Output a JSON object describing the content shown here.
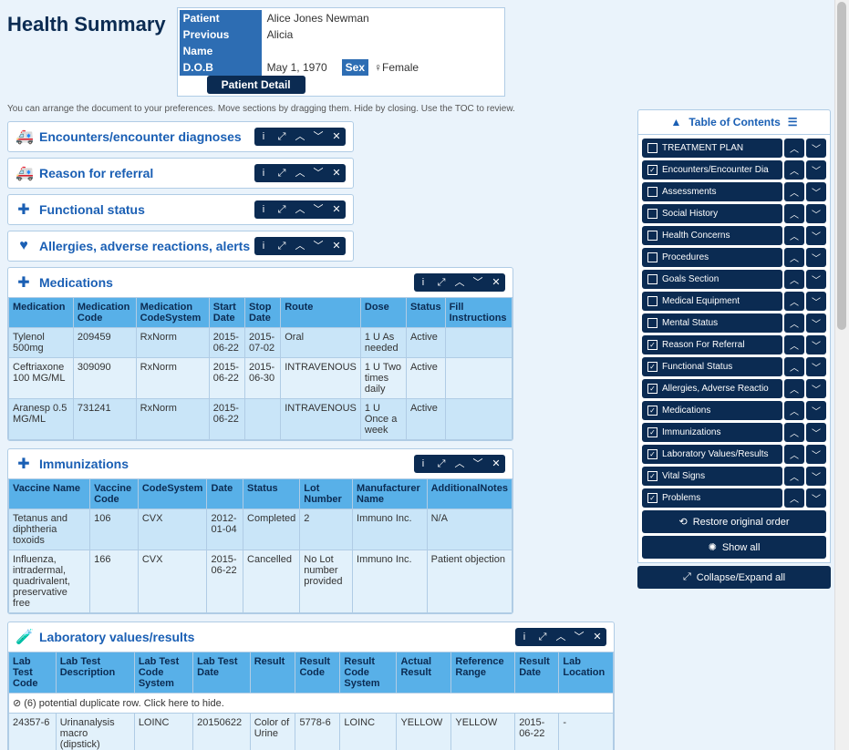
{
  "page_title": "Health Summary",
  "patient": {
    "label_patient": "Patient",
    "name": "Alice Jones Newman",
    "label_prev": "Previous Name",
    "prev_name": "Alicia",
    "label_dob": "D.O.B",
    "dob": "May 1, 1970",
    "label_sex": "Sex",
    "sex": "♀Female",
    "detail_btn": "Patient Detail"
  },
  "helper": "You can arrange the document to your preferences. Move sections by dragging them. Hide by closing. Use the TOC to review.",
  "collapsed": [
    {
      "icon": "🚑",
      "title": "Encounters/encounter diagnoses"
    },
    {
      "icon": "🚑",
      "title": "Reason for referral"
    },
    {
      "icon": "✚",
      "title": "Functional status"
    },
    {
      "icon": "♥",
      "title": "Allergies, adverse reactions, alerts"
    }
  ],
  "medications": {
    "icon": "✚",
    "title": "Medications",
    "cols": [
      "Medication",
      "Medication Code",
      "Medication CodeSystem",
      "Start Date",
      "Stop Date",
      "Route",
      "Dose",
      "Status",
      "Fill Instructions"
    ],
    "rows": [
      [
        "Tylenol 500mg",
        "209459",
        "RxNorm",
        "2015-06-22",
        "2015-07-02",
        "Oral",
        "1 U As needed",
        "Active",
        ""
      ],
      [
        "Ceftriaxone 100 MG/ML",
        "309090",
        "RxNorm",
        "2015-06-22",
        "2015-06-30",
        "INTRAVENOUS",
        "1 U Two times daily",
        "Active",
        ""
      ],
      [
        "Aranesp 0.5 MG/ML",
        "731241",
        "RxNorm",
        "2015-06-22",
        "",
        "INTRAVENOUS",
        "1 U Once a week",
        "Active",
        ""
      ]
    ]
  },
  "immunizations": {
    "icon": "✚",
    "title": "Immunizations",
    "cols": [
      "Vaccine Name",
      "Vaccine Code",
      "CodeSystem",
      "Date",
      "Status",
      "Lot Number",
      "Manufacturer Name",
      "AdditionalNotes"
    ],
    "rows": [
      [
        "Tetanus and diphtheria toxoids",
        "106",
        "CVX",
        "2012-01-04",
        "Completed",
        "2",
        "Immuno Inc.",
        "N/A"
      ],
      [
        "Influenza, intradermal, quadrivalent, preservative free",
        "166",
        "CVX",
        "2015-06-22",
        "Cancelled",
        "No Lot number provided",
        "Immuno Inc.",
        "Patient objection"
      ]
    ]
  },
  "labs": {
    "icon": "🧪",
    "title": "Laboratory values/results",
    "cols": [
      "Lab Test Code",
      "Lab Test Description",
      "Lab Test Code System",
      "Lab Test Date",
      "Result",
      "Result Code",
      "Result Code System",
      "Actual Result",
      "Reference Range",
      "Result Date",
      "Lab Location"
    ],
    "dup_text": "⊘ (6) potential duplicate row. Click here to hide.",
    "rows": [
      [
        "24357-6",
        "Urinanalysis macro (dipstick)",
        "LOINC",
        "20150622",
        "Color of Urine",
        "5778-6",
        "LOINC",
        "YELLOW",
        "YELLOW",
        "2015-06-22",
        "-"
      ]
    ]
  },
  "toc": {
    "title": "Table of Contents",
    "items": [
      {
        "label": "TREATMENT PLAN",
        "checked": false
      },
      {
        "label": "Encounters/Encounter Dia",
        "checked": true
      },
      {
        "label": "Assessments",
        "checked": false
      },
      {
        "label": "Social History",
        "checked": false
      },
      {
        "label": "Health Concerns",
        "checked": false
      },
      {
        "label": "Procedures",
        "checked": false
      },
      {
        "label": "Goals Section",
        "checked": false
      },
      {
        "label": "Medical Equipment",
        "checked": false
      },
      {
        "label": "Mental Status",
        "checked": false
      },
      {
        "label": "Reason For Referral",
        "checked": true
      },
      {
        "label": "Functional Status",
        "checked": true
      },
      {
        "label": "Allergies, Adverse Reactio",
        "checked": true
      },
      {
        "label": "Medications",
        "checked": true
      },
      {
        "label": "Immunizations",
        "checked": true
      },
      {
        "label": "Laboratory Values/Results",
        "checked": true
      },
      {
        "label": "Vital Signs",
        "checked": true
      },
      {
        "label": "Problems",
        "checked": true
      }
    ],
    "restore": "Restore original order",
    "show_all": "Show all",
    "collapse": "Collapse/Expand all"
  }
}
